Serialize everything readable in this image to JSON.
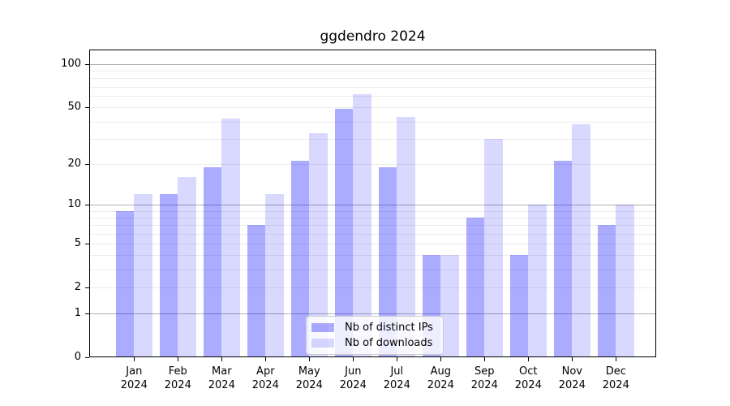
{
  "chart_data": {
    "type": "bar",
    "title": "ggdendro 2024",
    "categories": [
      "Jan",
      "Feb",
      "Mar",
      "Apr",
      "May",
      "Jun",
      "Jul",
      "Aug",
      "Sep",
      "Oct",
      "Nov",
      "Dec"
    ],
    "x_tick_second_line": "2024",
    "series": [
      {
        "name": "Nb of distinct IPs",
        "color": "rgba(0,0,255,0.33)",
        "values": [
          9,
          12,
          19,
          7,
          21,
          49,
          19,
          4,
          8,
          4,
          21,
          7
        ]
      },
      {
        "name": "Nb of downloads",
        "color": "rgba(0,0,255,0.15)",
        "values": [
          12,
          16,
          42,
          12,
          33,
          62,
          43,
          4,
          30,
          10,
          38,
          10
        ]
      }
    ],
    "y_scale": "log1p",
    "y_ticks": [
      100,
      50,
      20,
      10,
      5,
      2,
      1,
      0
    ],
    "grid_major": [
      1,
      10,
      100
    ],
    "grid_minor": [
      2,
      3,
      4,
      5,
      6,
      7,
      8,
      9,
      20,
      30,
      40,
      50,
      60,
      70,
      80,
      90
    ],
    "ylim": [
      0,
      126
    ],
    "grid": "on",
    "legend_position": "lower center",
    "xlabel": "",
    "ylabel": ""
  },
  "colors": {
    "grid_major": "#b0b0b0",
    "grid_minor": "#ebebeb",
    "axis": "#000000",
    "legend_border": "#cccccc",
    "background": "#ffffff"
  }
}
